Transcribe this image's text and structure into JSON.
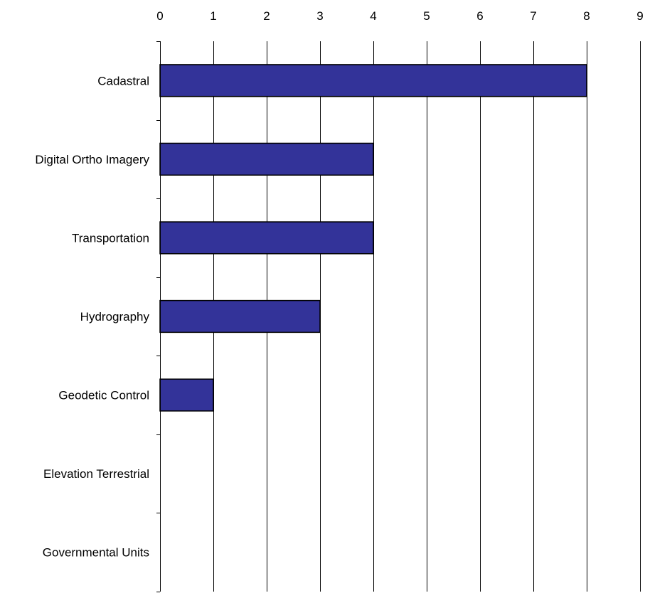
{
  "chart_data": {
    "type": "bar",
    "orientation": "horizontal",
    "categories": [
      "Cadastral",
      "Digital Ortho Imagery",
      "Transportation",
      "Hydrography",
      "Geodetic Control",
      "Elevation Terrestrial",
      "Governmental Units"
    ],
    "values": [
      8,
      4,
      4,
      3,
      1,
      0,
      0
    ],
    "title": "",
    "xlabel": "",
    "ylabel": "",
    "xlim": [
      0,
      9
    ],
    "x_ticks": [
      "0",
      "1",
      "2",
      "3",
      "4",
      "5",
      "6",
      "7",
      "8",
      "9"
    ],
    "x_axis_position": "top",
    "grid": "vertical",
    "legend": "none",
    "bar_color": "#333399",
    "bar_edge_color": "#000000"
  }
}
